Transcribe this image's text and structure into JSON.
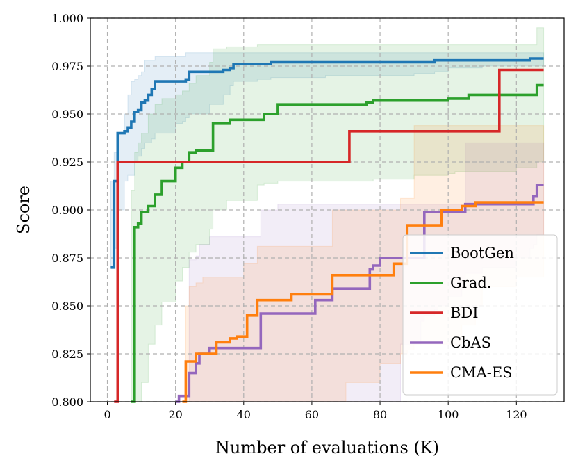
{
  "chart_data": {
    "type": "line",
    "title": "",
    "xlabel": "Number of evaluations (K)",
    "ylabel": "Score",
    "xlim": [
      -5,
      134
    ],
    "ylim": [
      0.8,
      1.0
    ],
    "xticks": [
      0,
      20,
      40,
      60,
      80,
      100,
      120
    ],
    "yticks": [
      0.8,
      0.825,
      0.85,
      0.875,
      0.9,
      0.925,
      0.95,
      0.975,
      1.0
    ],
    "grid": true,
    "legend_position": "lower-right",
    "series": [
      {
        "name": "BootGen",
        "color": "#1f77b4",
        "x": [
          1,
          2,
          3,
          5,
          6,
          7,
          8,
          9,
          10,
          11,
          12,
          13,
          14,
          20,
          22,
          23,
          24,
          30,
          34,
          36,
          37,
          44,
          48,
          50,
          60,
          64,
          70,
          80,
          90,
          96,
          100,
          110,
          120,
          124,
          128
        ],
        "y": [
          0.87,
          0.915,
          0.94,
          0.941,
          0.943,
          0.946,
          0.951,
          0.952,
          0.956,
          0.957,
          0.96,
          0.963,
          0.967,
          0.967,
          0.967,
          0.968,
          0.972,
          0.972,
          0.973,
          0.974,
          0.976,
          0.976,
          0.977,
          0.977,
          0.977,
          0.977,
          0.977,
          0.977,
          0.977,
          0.978,
          0.978,
          0.978,
          0.978,
          0.979,
          0.979
        ],
        "band_upper": [
          0.915,
          0.93,
          0.94,
          0.95,
          0.96,
          0.967,
          0.968,
          0.97,
          0.972,
          0.978,
          0.978,
          0.978,
          0.98,
          0.98,
          0.98,
          0.982,
          0.982,
          0.982,
          0.982,
          0.982,
          0.982,
          0.982,
          0.982,
          0.982,
          0.982,
          0.982,
          0.982,
          0.982,
          0.982,
          0.982,
          0.982,
          0.982,
          0.982,
          0.982,
          0.982
        ],
        "band_lower": [
          0.87,
          0.88,
          0.9,
          0.915,
          0.918,
          0.918,
          0.925,
          0.928,
          0.932,
          0.935,
          0.935,
          0.937,
          0.94,
          0.945,
          0.946,
          0.948,
          0.95,
          0.955,
          0.96,
          0.965,
          0.967,
          0.968,
          0.969,
          0.969,
          0.969,
          0.97,
          0.97,
          0.97,
          0.971,
          0.972,
          0.974,
          0.975,
          0.975,
          0.975,
          0.975
        ]
      },
      {
        "name": "Grad.",
        "color": "#2ca02c",
        "x": [
          7,
          8,
          9,
          10,
          12,
          14,
          16,
          20,
          22,
          24,
          26,
          30,
          31,
          35,
          36,
          44,
          46,
          50,
          60,
          70,
          74,
          76,
          78,
          80,
          90,
          96,
          100,
          102,
          106,
          110,
          120,
          126,
          128
        ],
        "y": [
          0.8,
          0.891,
          0.893,
          0.899,
          0.902,
          0.908,
          0.915,
          0.922,
          0.925,
          0.93,
          0.931,
          0.931,
          0.945,
          0.945,
          0.947,
          0.947,
          0.95,
          0.955,
          0.955,
          0.955,
          0.955,
          0.956,
          0.957,
          0.957,
          0.957,
          0.957,
          0.958,
          0.958,
          0.96,
          0.96,
          0.96,
          0.965,
          0.965
        ],
        "band_upper": [
          0.91,
          0.93,
          0.935,
          0.94,
          0.95,
          0.955,
          0.958,
          0.96,
          0.962,
          0.966,
          0.97,
          0.977,
          0.984,
          0.985,
          0.985,
          0.986,
          0.986,
          0.986,
          0.986,
          0.986,
          0.986,
          0.986,
          0.986,
          0.986,
          0.986,
          0.986,
          0.986,
          0.986,
          0.986,
          0.986,
          0.986,
          0.995,
          0.995
        ],
        "band_lower": [
          0.8,
          0.8,
          0.8,
          0.81,
          0.83,
          0.84,
          0.852,
          0.863,
          0.87,
          0.878,
          0.882,
          0.89,
          0.9,
          0.905,
          0.905,
          0.913,
          0.914,
          0.915,
          0.915,
          0.915,
          0.915,
          0.915,
          0.916,
          0.916,
          0.918,
          0.918,
          0.919,
          0.92,
          0.92,
          0.92,
          0.922,
          0.925,
          0.925
        ]
      },
      {
        "name": "BDI",
        "color": "#d62728",
        "x": [
          2,
          3,
          10,
          20,
          30,
          40,
          50,
          60,
          70,
          71,
          80,
          90,
          100,
          110,
          114,
          115,
          120,
          128
        ],
        "y": [
          0.8,
          0.925,
          0.925,
          0.925,
          0.925,
          0.925,
          0.925,
          0.925,
          0.925,
          0.941,
          0.941,
          0.941,
          0.941,
          0.941,
          0.941,
          0.973,
          0.973,
          0.973
        ],
        "band_upper": [
          0.8,
          0.925,
          0.925,
          0.925,
          0.925,
          0.925,
          0.925,
          0.925,
          0.925,
          0.941,
          0.941,
          0.941,
          0.941,
          0.941,
          0.941,
          0.973,
          0.973,
          0.973
        ],
        "band_lower": [
          0.8,
          0.925,
          0.925,
          0.925,
          0.925,
          0.925,
          0.925,
          0.925,
          0.925,
          0.941,
          0.941,
          0.941,
          0.941,
          0.941,
          0.941,
          0.973,
          0.973,
          0.973
        ]
      },
      {
        "name": "CbAS",
        "color": "#9467bd",
        "x": [
          20,
          21,
          23,
          24,
          26,
          27,
          30,
          32,
          36,
          40,
          44,
          45,
          50,
          55,
          60,
          61,
          65,
          66,
          70,
          76,
          77,
          78,
          80,
          86,
          92,
          93,
          96,
          97,
          100,
          104,
          105,
          110,
          120,
          124,
          125,
          126,
          128
        ],
        "y": [
          0.8,
          0.803,
          0.803,
          0.815,
          0.82,
          0.825,
          0.828,
          0.828,
          0.828,
          0.828,
          0.828,
          0.846,
          0.846,
          0.846,
          0.846,
          0.853,
          0.853,
          0.859,
          0.859,
          0.859,
          0.869,
          0.871,
          0.875,
          0.875,
          0.875,
          0.899,
          0.899,
          0.899,
          0.899,
          0.899,
          0.903,
          0.903,
          0.903,
          0.903,
          0.907,
          0.913,
          0.913
        ],
        "band_upper": [
          0.8,
          0.8,
          0.8,
          0.874,
          0.876,
          0.882,
          0.886,
          0.886,
          0.886,
          0.886,
          0.886,
          0.9,
          0.903,
          0.903,
          0.903,
          0.903,
          0.903,
          0.903,
          0.903,
          0.903,
          0.903,
          0.903,
          0.903,
          0.903,
          0.903,
          0.903,
          0.903,
          0.903,
          0.903,
          0.903,
          0.935,
          0.935,
          0.935,
          0.935,
          0.935,
          0.935,
          0.935
        ],
        "band_lower": [
          0.8,
          0.8,
          0.8,
          0.8,
          0.8,
          0.8,
          0.8,
          0.8,
          0.8,
          0.8,
          0.8,
          0.8,
          0.8,
          0.8,
          0.8,
          0.8,
          0.8,
          0.8,
          0.8,
          0.8,
          0.8,
          0.8,
          0.8,
          0.83,
          0.842,
          0.845,
          0.848,
          0.85,
          0.855,
          0.86,
          0.867,
          0.87,
          0.875,
          0.88,
          0.882,
          0.887,
          0.887
        ]
      },
      {
        "name": "CMA-ES",
        "color": "#ff7f0e",
        "x": [
          22,
          23,
          24,
          26,
          28,
          30,
          32,
          34,
          36,
          38,
          40,
          41,
          42,
          44,
          46,
          50,
          54,
          60,
          64,
          66,
          70,
          80,
          84,
          86,
          88,
          90,
          96,
          98,
          100,
          104,
          108,
          110,
          120,
          128
        ],
        "y": [
          0.8,
          0.821,
          0.821,
          0.825,
          0.825,
          0.825,
          0.831,
          0.831,
          0.833,
          0.834,
          0.834,
          0.845,
          0.845,
          0.853,
          0.853,
          0.853,
          0.856,
          0.856,
          0.856,
          0.866,
          0.866,
          0.866,
          0.872,
          0.872,
          0.892,
          0.892,
          0.892,
          0.9,
          0.9,
          0.902,
          0.904,
          0.904,
          0.904,
          0.904
        ],
        "band_upper": [
          0.8,
          0.85,
          0.86,
          0.862,
          0.865,
          0.865,
          0.865,
          0.865,
          0.865,
          0.865,
          0.872,
          0.872,
          0.872,
          0.881,
          0.881,
          0.881,
          0.881,
          0.881,
          0.881,
          0.9,
          0.9,
          0.9,
          0.9,
          0.906,
          0.906,
          0.944,
          0.944,
          0.944,
          0.944,
          0.944,
          0.944,
          0.944,
          0.944,
          0.944
        ],
        "band_lower": [
          0.8,
          0.8,
          0.8,
          0.8,
          0.8,
          0.8,
          0.8,
          0.8,
          0.8,
          0.8,
          0.8,
          0.8,
          0.8,
          0.8,
          0.8,
          0.8,
          0.8,
          0.8,
          0.8,
          0.8,
          0.81,
          0.82,
          0.82,
          0.825,
          0.827,
          0.83,
          0.83,
          0.83,
          0.83,
          0.84,
          0.85,
          0.86,
          0.865,
          0.865
        ]
      }
    ]
  }
}
